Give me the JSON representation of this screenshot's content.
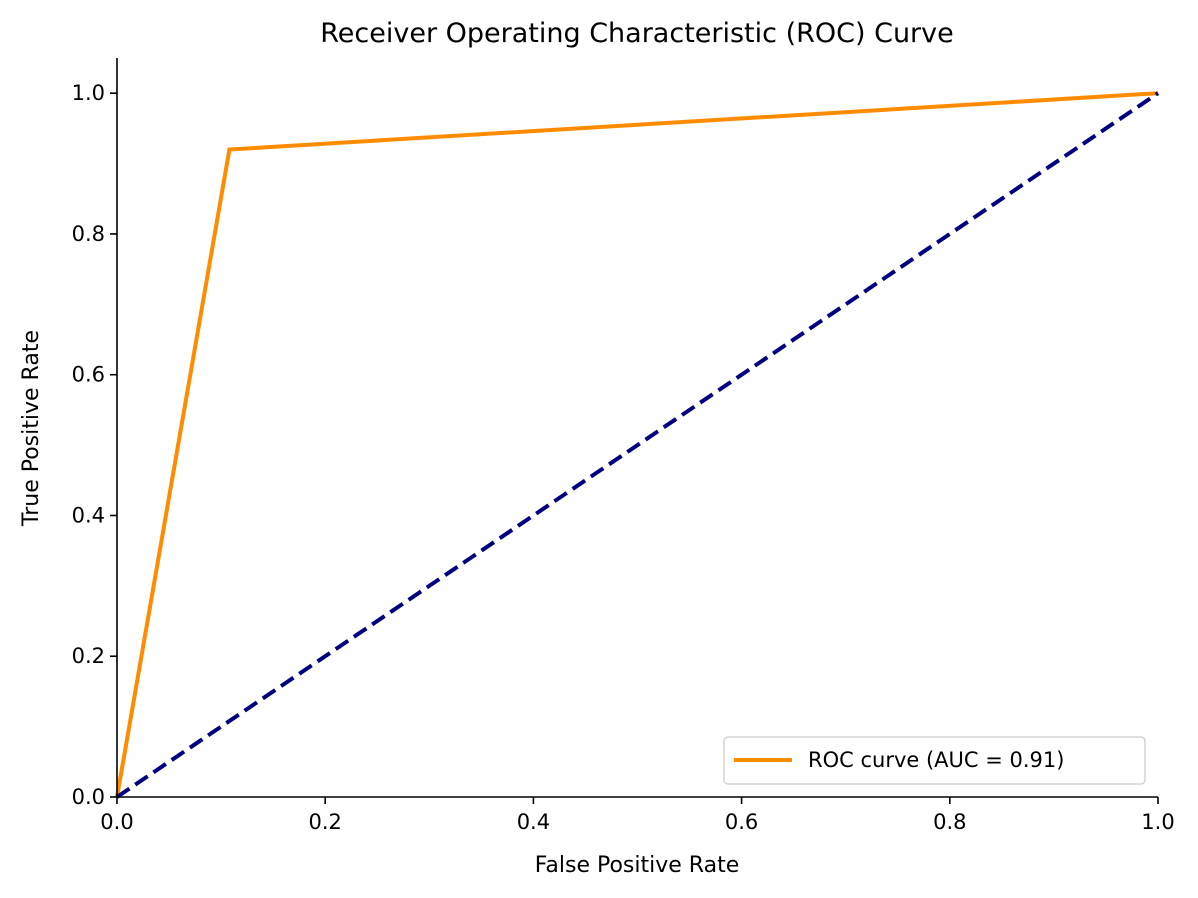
{
  "chart_data": {
    "type": "line",
    "title": "Receiver Operating Characteristic (ROC) Curve",
    "xlabel": "False Positive Rate",
    "ylabel": "True Positive Rate",
    "xlim": [
      0.0,
      1.0
    ],
    "ylim": [
      0.0,
      1.05
    ],
    "xticks": [
      0.0,
      0.2,
      0.4,
      0.6,
      0.8,
      1.0
    ],
    "xtick_labels": [
      "0.0",
      "0.2",
      "0.4",
      "0.6",
      "0.8",
      "1.0"
    ],
    "yticks": [
      0.0,
      0.2,
      0.4,
      0.6,
      0.8,
      1.0
    ],
    "ytick_labels": [
      "0.0",
      "0.2",
      "0.4",
      "0.6",
      "0.8",
      "1.0"
    ],
    "grid": false,
    "legend_position": "lower-right",
    "series": [
      {
        "name": "ROC curve (AUC = 0.91)",
        "color": "#ff8c00",
        "style": "solid",
        "x": [
          0.0,
          0.108,
          1.0
        ],
        "y": [
          0.0,
          0.92,
          1.0
        ]
      },
      {
        "color": "#000080",
        "style": "dashed",
        "x": [
          0.0,
          1.0
        ],
        "y": [
          0.0,
          1.0
        ]
      }
    ]
  }
}
